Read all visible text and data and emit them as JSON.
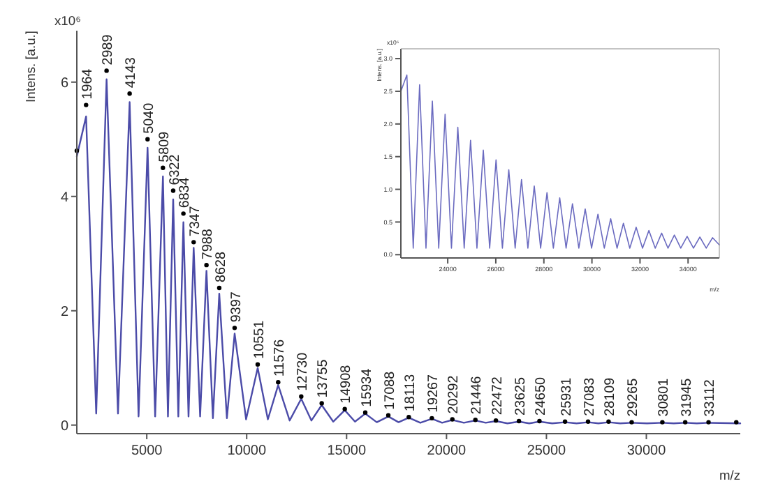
{
  "chart_data": [
    {
      "type": "line",
      "xlabel": "m/z",
      "ylabel": "Intens. [a.u.]",
      "xlim": [
        1500,
        34700
      ],
      "ylim": [
        -0.15,
        6.9
      ],
      "xticks": [
        5000,
        10000,
        15000,
        20000,
        25000,
        30000
      ],
      "yticks": [
        0,
        2,
        4,
        6
      ],
      "series": [
        {
          "type": "line",
          "color": "#4b4ba8",
          "x": [
            1500,
            1964,
            2470,
            2989,
            3560,
            4143,
            4590,
            5040,
            5420,
            5809,
            6060,
            6322,
            6580,
            6834,
            7090,
            7347,
            7670,
            7988,
            8310,
            8628,
            9010,
            9397,
            9970,
            10551,
            11060,
            11576,
            12150,
            12730,
            13240,
            13755,
            14330,
            14908,
            15420,
            15934,
            16510,
            17088,
            17600,
            18113,
            18690,
            19267,
            19780,
            20292,
            20870,
            21446,
            21960,
            22472,
            23050,
            23625,
            24140,
            24650,
            25290,
            25931,
            26510,
            27083,
            27600,
            28109,
            28690,
            29265,
            30030,
            30801,
            31370,
            31945,
            32530,
            33112,
            34700
          ],
          "values": [
            4.7,
            5.4,
            0.2,
            6.05,
            0.2,
            5.65,
            0.15,
            4.85,
            0.15,
            4.35,
            0.15,
            3.95,
            0.15,
            3.55,
            0.15,
            3.1,
            0.15,
            2.7,
            0.12,
            2.3,
            0.12,
            1.6,
            0.1,
            1.0,
            0.1,
            0.7,
            0.08,
            0.46,
            0.08,
            0.35,
            0.06,
            0.26,
            0.06,
            0.2,
            0.05,
            0.15,
            0.05,
            0.13,
            0.04,
            0.11,
            0.04,
            0.09,
            0.04,
            0.08,
            0.04,
            0.07,
            0.03,
            0.06,
            0.03,
            0.06,
            0.03,
            0.05,
            0.03,
            0.05,
            0.03,
            0.05,
            0.03,
            0.04,
            0.03,
            0.04,
            0.03,
            0.04,
            0.03,
            0.04,
            0.03
          ]
        },
        {
          "type": "scatter",
          "color": "#000000",
          "marker": "circle",
          "x": [
            1500,
            1964,
            2989,
            4143,
            5040,
            5809,
            6322,
            6834,
            7347,
            7988,
            8628,
            9397,
            10551,
            11576,
            12730,
            13755,
            14908,
            15934,
            17088,
            18113,
            19267,
            20292,
            21446,
            22472,
            23625,
            24650,
            25931,
            27083,
            28109,
            29265,
            30801,
            31945,
            33112,
            34500
          ],
          "values": [
            4.8,
            5.6,
            6.2,
            5.8,
            5.0,
            4.5,
            4.1,
            3.7,
            3.2,
            2.8,
            2.4,
            1.7,
            1.06,
            0.75,
            0.5,
            0.38,
            0.28,
            0.22,
            0.17,
            0.14,
            0.12,
            0.1,
            0.09,
            0.08,
            0.07,
            0.07,
            0.06,
            0.06,
            0.06,
            0.05,
            0.05,
            0.05,
            0.05,
            0.05
          ]
        }
      ],
      "annotations": [
        "x10⁶",
        {
          "text": "1964",
          "x": 1964,
          "y": 5.6
        },
        {
          "text": "2989",
          "x": 2989,
          "y": 6.2
        },
        {
          "text": "4143",
          "x": 4143,
          "y": 5.8
        },
        {
          "text": "5040",
          "x": 5040,
          "y": 5.0
        },
        {
          "text": "5809",
          "x": 5809,
          "y": 4.5
        },
        {
          "text": "6322",
          "x": 6322,
          "y": 4.1
        },
        {
          "text": "6834",
          "x": 6834,
          "y": 3.7
        },
        {
          "text": "7347",
          "x": 7347,
          "y": 3.2
        },
        {
          "text": "7988",
          "x": 7988,
          "y": 2.8
        },
        {
          "text": "8628",
          "x": 8628,
          "y": 2.4
        },
        {
          "text": "9397",
          "x": 9397,
          "y": 1.7
        },
        {
          "text": "10551",
          "x": 10551,
          "y": 1.06
        },
        {
          "text": "11576",
          "x": 11576,
          "y": 0.75
        },
        {
          "text": "12730",
          "x": 12730,
          "y": 0.5
        },
        {
          "text": "13755",
          "x": 13755,
          "y": 0.38
        },
        {
          "text": "14908",
          "x": 14908,
          "y": 0.28
        },
        {
          "text": "15934",
          "x": 15934,
          "y": 0.22
        },
        {
          "text": "17088",
          "x": 17088,
          "y": 0.17
        },
        {
          "text": "18113",
          "x": 18113,
          "y": 0.14
        },
        {
          "text": "19267",
          "x": 19267,
          "y": 0.12
        },
        {
          "text": "20292",
          "x": 20292,
          "y": 0.1
        },
        {
          "text": "21446",
          "x": 21446,
          "y": 0.09
        },
        {
          "text": "22472",
          "x": 22472,
          "y": 0.08
        },
        {
          "text": "23625",
          "x": 23625,
          "y": 0.07
        },
        {
          "text": "24650",
          "x": 24650,
          "y": 0.07
        },
        {
          "text": "25931",
          "x": 25931,
          "y": 0.06
        },
        {
          "text": "27083",
          "x": 27083,
          "y": 0.06
        },
        {
          "text": "28109",
          "x": 28109,
          "y": 0.06
        },
        {
          "text": "29265",
          "x": 29265,
          "y": 0.05
        },
        {
          "text": "30801",
          "x": 30801,
          "y": 0.05
        },
        {
          "text": "31945",
          "x": 31945,
          "y": 0.05
        },
        {
          "text": "33112",
          "x": 33112,
          "y": 0.05
        }
      ]
    },
    {
      "type": "line",
      "xlabel": "m/z",
      "ylabel": "Intens. [a.u.]",
      "xlim": [
        22050,
        35300
      ],
      "ylim": [
        -0.05,
        3.15
      ],
      "xticks": [
        24000,
        26000,
        28000,
        30000,
        32000,
        34000
      ],
      "yticks": [
        {
          "value": 0,
          "label": "0.0"
        },
        {
          "value": 0.5,
          "label": "0.5"
        },
        {
          "value": 1,
          "label": "1.0"
        },
        {
          "value": 1.5,
          "label": "1.5"
        },
        {
          "value": 2,
          "label": "2.0"
        },
        {
          "value": 2.5,
          "label": "2.5"
        },
        {
          "value": 3,
          "label": "3.0"
        }
      ],
      "series": [
        {
          "type": "line",
          "color": "#6b6bc0",
          "x": [
            22050,
            22300,
            22565,
            22830,
            23095,
            23360,
            23625,
            23890,
            24155,
            24420,
            24685,
            24950,
            25215,
            25480,
            25745,
            26010,
            26275,
            26540,
            26805,
            27070,
            27335,
            27600,
            27865,
            28130,
            28395,
            28660,
            28925,
            29190,
            29455,
            29720,
            29985,
            30250,
            30515,
            30780,
            31045,
            31310,
            31575,
            31840,
            32105,
            32370,
            32635,
            32900,
            33165,
            33430,
            33695,
            33960,
            34225,
            34490,
            34755,
            35020,
            35300
          ],
          "values": [
            2.5,
            2.75,
            0.1,
            2.6,
            0.1,
            2.35,
            0.1,
            2.15,
            0.1,
            1.95,
            0.1,
            1.75,
            0.1,
            1.6,
            0.1,
            1.45,
            0.1,
            1.3,
            0.1,
            1.15,
            0.1,
            1.05,
            0.1,
            0.95,
            0.1,
            0.87,
            0.1,
            0.78,
            0.1,
            0.7,
            0.1,
            0.62,
            0.1,
            0.55,
            0.1,
            0.48,
            0.1,
            0.42,
            0.1,
            0.37,
            0.1,
            0.33,
            0.1,
            0.3,
            0.1,
            0.28,
            0.1,
            0.27,
            0.1,
            0.26,
            0.15
          ]
        }
      ],
      "annotations": [
        "x10⁶"
      ]
    }
  ]
}
